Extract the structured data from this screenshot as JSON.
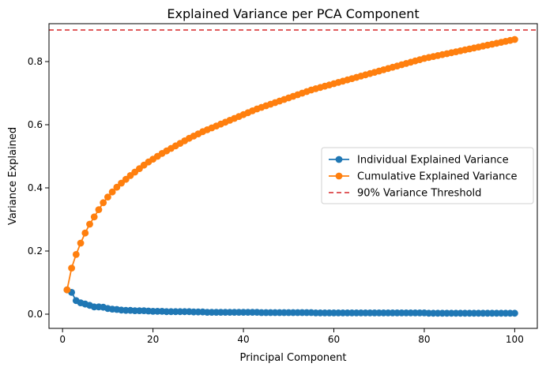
{
  "chart_data": {
    "type": "line",
    "title": "Explained Variance per PCA Component",
    "xlabel": "Principal Component",
    "ylabel": "Variance Explained",
    "xlim": [
      -3,
      105
    ],
    "ylim": [
      -0.045,
      0.92
    ],
    "xticks": [
      0,
      20,
      40,
      60,
      80,
      100
    ],
    "yticks": [
      0.0,
      0.2,
      0.4,
      0.6,
      0.8
    ],
    "legend": {
      "placement": "center-right",
      "entries": [
        "Individual Explained Variance",
        "Cumulative Explained Variance",
        "90% Variance Threshold"
      ]
    },
    "colors": {
      "individual": "#1f77b4",
      "cumulative": "#ff7f0e",
      "threshold": "#d62728"
    },
    "threshold": 0.9,
    "x": [
      1,
      2,
      3,
      4,
      5,
      6,
      7,
      8,
      9,
      10,
      11,
      12,
      13,
      14,
      15,
      16,
      17,
      18,
      19,
      20,
      21,
      22,
      23,
      24,
      25,
      26,
      27,
      28,
      29,
      30,
      31,
      32,
      33,
      34,
      35,
      36,
      37,
      38,
      39,
      40,
      41,
      42,
      43,
      44,
      45,
      46,
      47,
      48,
      49,
      50,
      51,
      52,
      53,
      54,
      55,
      56,
      57,
      58,
      59,
      60,
      61,
      62,
      63,
      64,
      65,
      66,
      67,
      68,
      69,
      70,
      71,
      72,
      73,
      74,
      75,
      76,
      77,
      78,
      79,
      80,
      81,
      82,
      83,
      84,
      85,
      86,
      87,
      88,
      89,
      90,
      91,
      92,
      93,
      94,
      95,
      96,
      97,
      98,
      99,
      100
    ],
    "series": [
      {
        "name": "Individual Explained Variance",
        "values": [
          0.077,
          0.069,
          0.043,
          0.036,
          0.032,
          0.028,
          0.023,
          0.023,
          0.022,
          0.018,
          0.016,
          0.015,
          0.013,
          0.012,
          0.012,
          0.011,
          0.011,
          0.011,
          0.01,
          0.009,
          0.009,
          0.009,
          0.008,
          0.008,
          0.008,
          0.008,
          0.008,
          0.008,
          0.007,
          0.007,
          0.007,
          0.006,
          0.006,
          0.006,
          0.006,
          0.006,
          0.006,
          0.006,
          0.006,
          0.006,
          0.006,
          0.006,
          0.006,
          0.005,
          0.005,
          0.005,
          0.005,
          0.005,
          0.005,
          0.005,
          0.005,
          0.005,
          0.005,
          0.005,
          0.005,
          0.004,
          0.004,
          0.004,
          0.004,
          0.004,
          0.004,
          0.004,
          0.004,
          0.004,
          0.004,
          0.004,
          0.004,
          0.004,
          0.004,
          0.004,
          0.004,
          0.004,
          0.004,
          0.004,
          0.004,
          0.004,
          0.004,
          0.004,
          0.004,
          0.004,
          0.003,
          0.003,
          0.003,
          0.003,
          0.003,
          0.003,
          0.003,
          0.003,
          0.003,
          0.003,
          0.003,
          0.003,
          0.003,
          0.003,
          0.003,
          0.003,
          0.003,
          0.003,
          0.003,
          0.003
        ]
      },
      {
        "name": "Cumulative Explained Variance",
        "values": [
          0.077,
          0.146,
          0.189,
          0.225,
          0.257,
          0.285,
          0.308,
          0.331,
          0.353,
          0.371,
          0.387,
          0.402,
          0.415,
          0.427,
          0.439,
          0.45,
          0.461,
          0.472,
          0.482,
          0.491,
          0.5,
          0.509,
          0.517,
          0.525,
          0.533,
          0.541,
          0.549,
          0.557,
          0.564,
          0.571,
          0.578,
          0.584,
          0.59,
          0.596,
          0.602,
          0.608,
          0.614,
          0.62,
          0.626,
          0.632,
          0.638,
          0.644,
          0.65,
          0.655,
          0.66,
          0.665,
          0.67,
          0.675,
          0.68,
          0.685,
          0.69,
          0.695,
          0.7,
          0.705,
          0.71,
          0.714,
          0.718,
          0.722,
          0.726,
          0.73,
          0.734,
          0.738,
          0.742,
          0.746,
          0.75,
          0.754,
          0.758,
          0.762,
          0.766,
          0.77,
          0.774,
          0.778,
          0.782,
          0.786,
          0.79,
          0.794,
          0.798,
          0.802,
          0.806,
          0.81,
          0.813,
          0.816,
          0.819,
          0.822,
          0.825,
          0.828,
          0.831,
          0.834,
          0.837,
          0.84,
          0.843,
          0.846,
          0.849,
          0.852,
          0.855,
          0.858,
          0.861,
          0.864,
          0.867,
          0.87
        ]
      }
    ]
  }
}
